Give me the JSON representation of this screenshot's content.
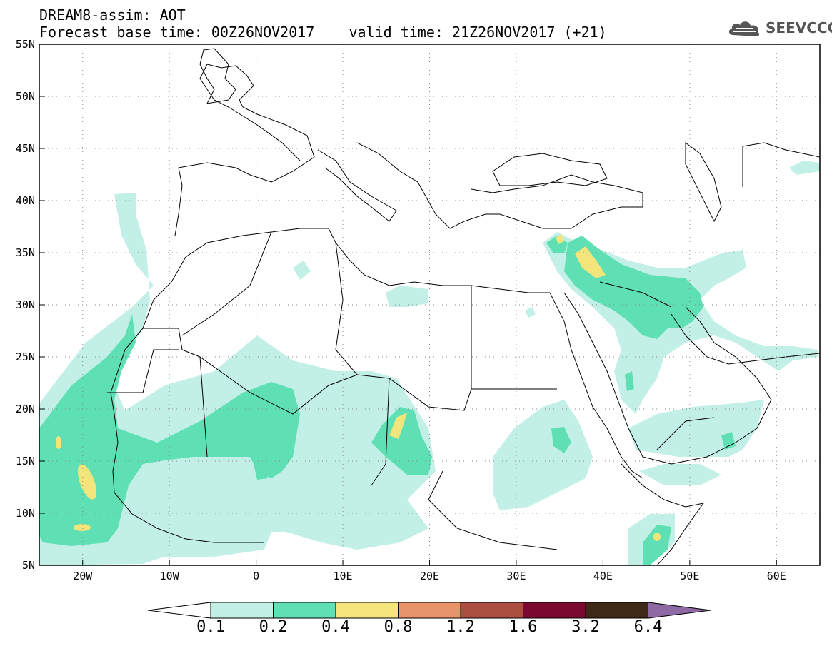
{
  "title": {
    "line1": "DREAM8-assim: AOT",
    "line2": "Forecast base time: 00Z26NOV2017    valid time: 21Z26NOV2017 (+21)"
  },
  "logo": {
    "text": "SEEVCCC",
    "icon": "cloud-logo-icon"
  },
  "map": {
    "lon_range": [
      -25,
      65
    ],
    "lat_range": [
      5,
      55
    ],
    "lat_ticks": [
      {
        "value": 55,
        "label": "55N"
      },
      {
        "value": 50,
        "label": "50N"
      },
      {
        "value": 45,
        "label": "45N"
      },
      {
        "value": 40,
        "label": "40N"
      },
      {
        "value": 35,
        "label": "35N"
      },
      {
        "value": 30,
        "label": "30N"
      },
      {
        "value": 25,
        "label": "25N"
      },
      {
        "value": 20,
        "label": "20N"
      },
      {
        "value": 15,
        "label": "15N"
      },
      {
        "value": 10,
        "label": "10N"
      },
      {
        "value": 5,
        "label": "5N"
      }
    ],
    "lon_ticks": [
      {
        "value": -20,
        "label": "20W"
      },
      {
        "value": -10,
        "label": "10W"
      },
      {
        "value": 0,
        "label": "0"
      },
      {
        "value": 10,
        "label": "10E"
      },
      {
        "value": 20,
        "label": "20E"
      },
      {
        "value": 30,
        "label": "30E"
      },
      {
        "value": 40,
        "label": "40E"
      },
      {
        "value": 50,
        "label": "50E"
      },
      {
        "value": 60,
        "label": "60E"
      }
    ],
    "grid": "dotted"
  },
  "colorbar": {
    "labels": [
      "0.1",
      "0.2",
      "0.4",
      "0.8",
      "1.2",
      "1.6",
      "3.2",
      "6.4"
    ],
    "colors": [
      "#ffffff",
      "#c2efe6",
      "#5fe0b4",
      "#f3e57b",
      "#e9936a",
      "#aa4e3f",
      "#7b0830",
      "#3e2818",
      "#8f69a3"
    ]
  }
}
